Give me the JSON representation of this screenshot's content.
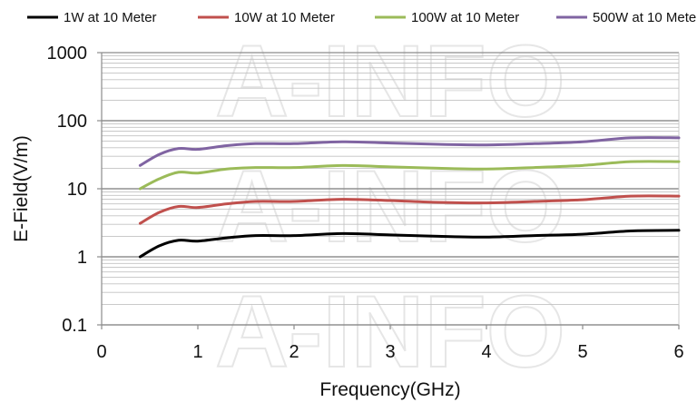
{
  "chart_data": {
    "type": "line",
    "xlabel": "Frequency(GHz)",
    "ylabel": "E-Field(V/m)",
    "xlim": [
      0,
      6
    ],
    "ylim": [
      0.1,
      1000
    ],
    "yscale": "log",
    "grid": true,
    "legend_position": "top",
    "xticks": [
      "0",
      "1",
      "2",
      "3",
      "4",
      "5",
      "6"
    ],
    "yticks": [
      "0.1",
      "1",
      "10",
      "100",
      "1000"
    ],
    "watermark": "A-INFO",
    "series": [
      {
        "name": "1W at 10 Meter",
        "color": "#000000",
        "x": [
          0.4,
          0.6,
          0.8,
          1.0,
          1.3,
          1.6,
          2.0,
          2.5,
          3.0,
          3.5,
          4.0,
          4.5,
          5.0,
          5.5,
          6.0
        ],
        "y": [
          1.0,
          1.45,
          1.75,
          1.7,
          1.9,
          2.05,
          2.05,
          2.2,
          2.1,
          2.0,
          1.95,
          2.05,
          2.15,
          2.4,
          2.45
        ]
      },
      {
        "name": "10W at 10 Meter",
        "color": "#c0504d",
        "x": [
          0.4,
          0.6,
          0.8,
          1.0,
          1.3,
          1.6,
          2.0,
          2.5,
          3.0,
          3.5,
          4.0,
          4.5,
          5.0,
          5.5,
          6.0
        ],
        "y": [
          3.1,
          4.5,
          5.5,
          5.3,
          6.0,
          6.5,
          6.5,
          7.0,
          6.7,
          6.3,
          6.2,
          6.5,
          6.9,
          7.8,
          7.8
        ]
      },
      {
        "name": "100W at 10 Meter",
        "color": "#9bbb59",
        "x": [
          0.4,
          0.6,
          0.8,
          1.0,
          1.3,
          1.6,
          2.0,
          2.5,
          3.0,
          3.5,
          4.0,
          4.5,
          5.0,
          5.5,
          6.0
        ],
        "y": [
          10,
          14,
          17.5,
          17,
          19.5,
          20.5,
          20.5,
          22,
          21,
          20,
          19.5,
          20.5,
          22,
          25,
          25
        ]
      },
      {
        "name": "500W at 10 Meter",
        "color": "#8064a2",
        "x": [
          0.4,
          0.6,
          0.8,
          1.0,
          1.3,
          1.6,
          2.0,
          2.5,
          3.0,
          3.5,
          4.0,
          4.5,
          5.0,
          5.5,
          6.0
        ],
        "y": [
          22,
          32,
          39,
          38,
          43,
          46,
          46,
          49,
          47,
          45,
          44,
          46,
          49,
          56,
          56
        ]
      }
    ]
  }
}
